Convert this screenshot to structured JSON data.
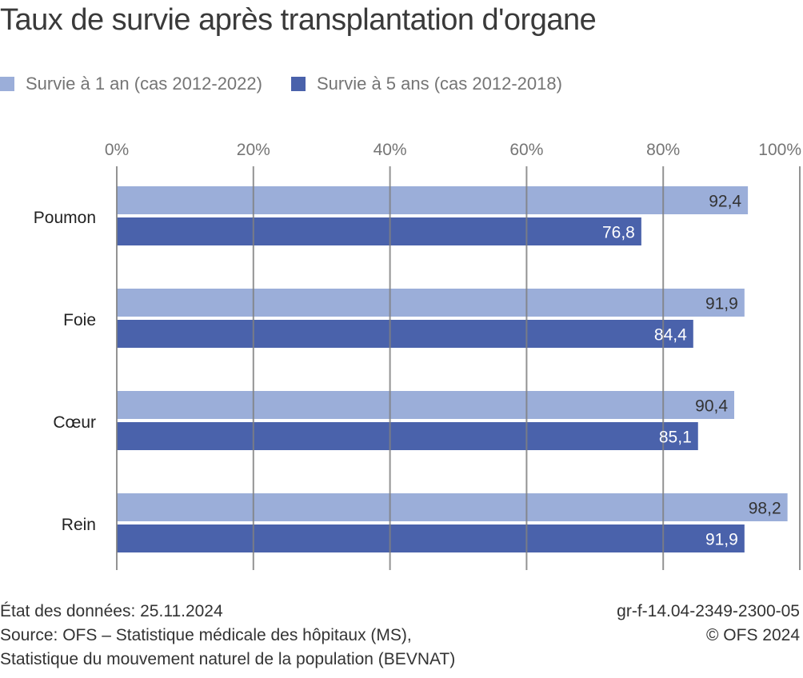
{
  "chart_data": {
    "type": "bar",
    "orientation": "horizontal",
    "title": "Taux de survie après transplantation d'organe",
    "xlabel": "",
    "ylabel": "",
    "xlim": [
      0,
      100
    ],
    "grid": true,
    "legend_position": "top-left",
    "x_ticks": [
      "0%",
      "20%",
      "40%",
      "60%",
      "80%",
      "100%"
    ],
    "x_tick_values": [
      0,
      20,
      40,
      60,
      80,
      100
    ],
    "categories": [
      "Poumon",
      "Foie",
      "Cœur",
      "Rein"
    ],
    "series": [
      {
        "name": "Survie à 1 an (cas 2012-2022)",
        "color": "#9baed9",
        "label_color": "#333333",
        "values": [
          92.4,
          91.9,
          90.4,
          98.2
        ],
        "labels": [
          "92,4",
          "91,9",
          "90,4",
          "98,2"
        ]
      },
      {
        "name": "Survie à 5 ans (cas 2012-2018)",
        "color": "#4a62ab",
        "label_color": "#ffffff",
        "values": [
          76.8,
          84.4,
          85.1,
          91.9
        ],
        "labels": [
          "76,8",
          "84,4",
          "85,1",
          "91,9"
        ]
      }
    ]
  },
  "footer": {
    "status": "État des données: 25.11.2024",
    "source_line1": "Source: OFS – Statistique médicale des hôpitaux (MS),",
    "source_line2": "Statistique du mouvement naturel de la population (BEVNAT)",
    "chart_id": "gr-f-14.04-2349-2300-05",
    "copyright": "© OFS 2024"
  }
}
